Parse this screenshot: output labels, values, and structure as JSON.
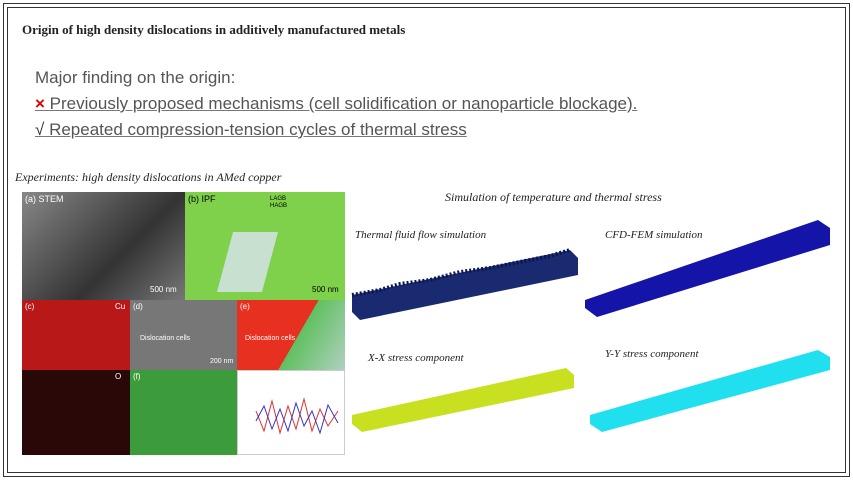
{
  "header": {
    "title": "Origin of high density dislocations in additively manufactured metals"
  },
  "findings": {
    "heading": "Major finding on the origin:",
    "items": [
      {
        "marker": "×",
        "text": "Previously proposed mechanisms (cell solidification or nanoparticle blockage)."
      },
      {
        "marker": "√",
        "text": "Repeated compression-tension cycles of thermal stress"
      }
    ]
  },
  "experiments": {
    "caption": "Experiments: high density dislocations in AMed copper",
    "panels": [
      "(a) STEM",
      "(b) IPF",
      "(c)",
      "(d)",
      "(e)",
      "(f)"
    ],
    "labels": [
      "500 nm",
      "500 nm",
      "Cu",
      "O",
      "Dislocation cells",
      "200 nm",
      "Dislocation cells",
      "LAGB",
      "HAGB"
    ]
  },
  "simulation": {
    "caption": "Simulation of temperature and thermal stress",
    "views": [
      "Thermal fluid flow simulation",
      "CFD-FEM simulation",
      "X-X stress component",
      "Y-Y stress component"
    ]
  }
}
